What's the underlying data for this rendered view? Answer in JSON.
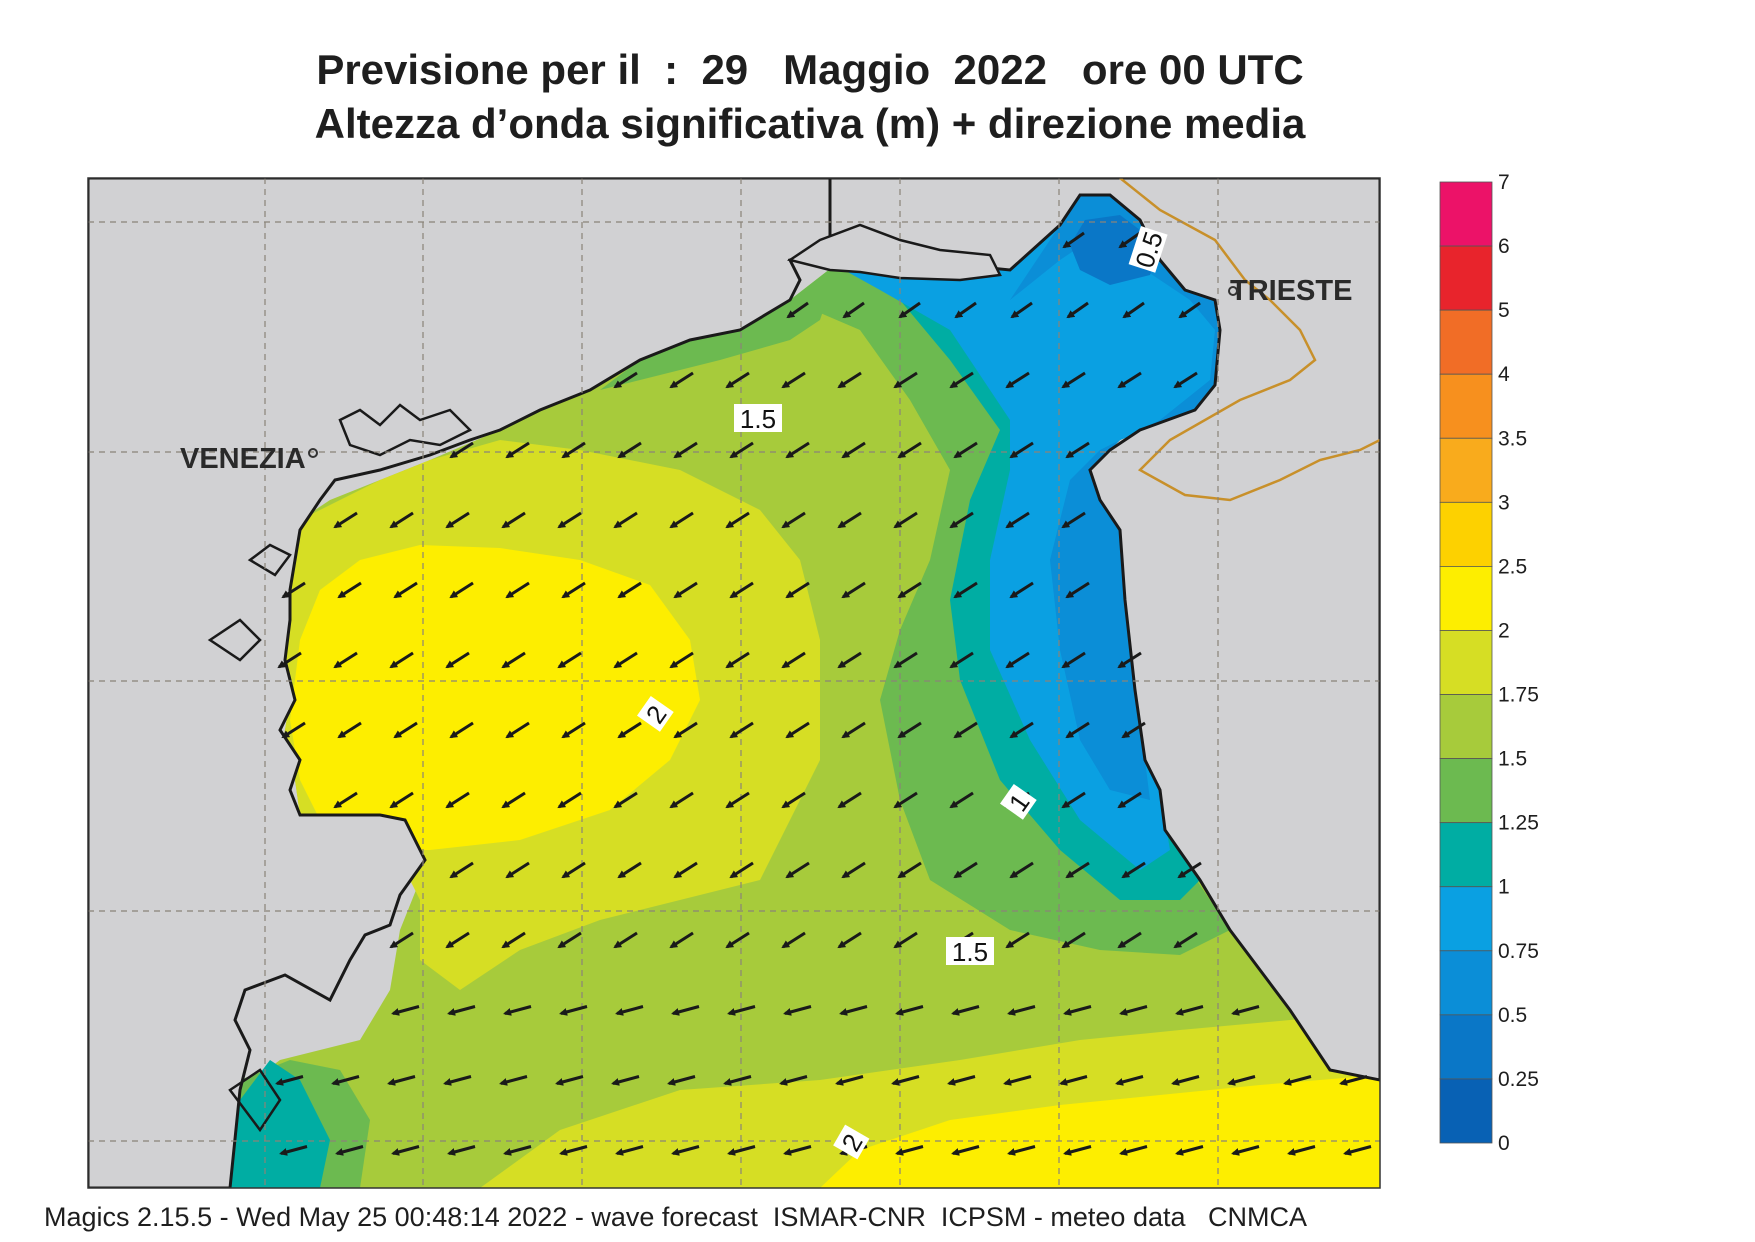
{
  "header": {
    "line1": "Previsione per il  :  29   Maggio  2022   ore 00 UTC",
    "line2": "Altezza d’onda significativa (m) + direzione media"
  },
  "footer": {
    "text": "Magics 2.15.5 - Wed May 25 00:48:14 2022 - wave forecast  ISMAR-CNR  ICPSM - meteo data   CNMCA"
  },
  "map": {
    "cities": [
      {
        "name": "VENEZIA"
      },
      {
        "name": "TRIESTE"
      }
    ],
    "contour_labels": [
      "0.5",
      "1.5",
      "2",
      "1",
      "1.5",
      "2"
    ],
    "mean_wave_direction": "from north-east (arrows pointing south-west)",
    "land_color": "#d1d1d3",
    "coast_color": "#1a1a1a",
    "border_color": "#c8902a"
  },
  "colorbar": {
    "title": "significant wave height (m)",
    "levels": [
      "7",
      "6",
      "5",
      "4",
      "3.5",
      "3",
      "2.5",
      "2",
      "1.75",
      "1.5",
      "1.25",
      "1",
      "0.75",
      "0.5",
      "0.25",
      "0"
    ],
    "bands": [
      {
        "from": 6,
        "to": 7,
        "color": "#ec1268"
      },
      {
        "from": 5,
        "to": 6,
        "color": "#e8242c"
      },
      {
        "from": 4,
        "to": 5,
        "color": "#f16d26"
      },
      {
        "from": 3.5,
        "to": 4,
        "color": "#f7901e"
      },
      {
        "from": 3,
        "to": 3.5,
        "color": "#f9ab1c"
      },
      {
        "from": 2.5,
        "to": 3,
        "color": "#fdd100"
      },
      {
        "from": 2,
        "to": 2.5,
        "color": "#fdee00"
      },
      {
        "from": 1.75,
        "to": 2,
        "color": "#d6de24"
      },
      {
        "from": 1.5,
        "to": 1.75,
        "color": "#a7cb3b"
      },
      {
        "from": 1.25,
        "to": 1.5,
        "color": "#6cba50"
      },
      {
        "from": 1,
        "to": 1.25,
        "color": "#00ada3"
      },
      {
        "from": 0.75,
        "to": 1,
        "color": "#0aa0e2"
      },
      {
        "from": 0.5,
        "to": 0.75,
        "color": "#0b8ed7"
      },
      {
        "from": 0.25,
        "to": 0.5,
        "color": "#0a77c7"
      },
      {
        "from": 0,
        "to": 0.25,
        "color": "#0861b4"
      }
    ]
  }
}
